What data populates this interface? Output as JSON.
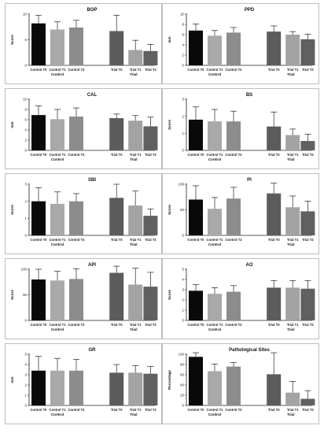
{
  "chart_data": [
    {
      "type": "bar",
      "title": "BOP",
      "ylabel": "Score",
      "ylim": [
        0,
        10
      ],
      "yticks": [
        0,
        5,
        10
      ],
      "categories": [
        "Control T0",
        "Control T1",
        "Control T2",
        "Trial T0",
        "Trial T1",
        "Trial T2"
      ],
      "groups": [
        "Control",
        "Trial"
      ],
      "values": [
        8.2,
        7.0,
        7.4,
        6.7,
        3.0,
        2.8
      ],
      "errors": [
        1.6,
        1.5,
        1.4,
        3.1,
        1.9,
        1.3
      ]
    },
    {
      "type": "bar",
      "title": "PPD",
      "ylabel": "mm",
      "ylim": [
        0,
        10
      ],
      "yticks": [
        0,
        2,
        4,
        6,
        8,
        10
      ],
      "categories": [
        "Control T0",
        "Control T1",
        "Control T2",
        "Trial T0",
        "Trial T1",
        "Trial T2"
      ],
      "groups": [
        "Control",
        "Trial"
      ],
      "values": [
        6.8,
        5.8,
        6.4,
        6.6,
        6.0,
        5.1
      ],
      "errors": [
        1.3,
        1.0,
        1.0,
        1.1,
        0.6,
        1.0
      ]
    },
    {
      "type": "bar",
      "title": "CAL",
      "ylabel": "mm",
      "ylim": [
        0,
        10
      ],
      "yticks": [
        0,
        2,
        4,
        6,
        8,
        10
      ],
      "categories": [
        "Control T0",
        "Control T1",
        "Control T2",
        "Trial T0",
        "Trial T1",
        "Trial T2"
      ],
      "groups": [
        "Control",
        "Trial"
      ],
      "values": [
        6.9,
        6.1,
        6.6,
        6.3,
        5.8,
        4.7
      ],
      "errors": [
        1.8,
        1.9,
        1.7,
        0.8,
        1.0,
        1.8
      ]
    },
    {
      "type": "bar",
      "title": "BS",
      "ylabel": "Score",
      "ylim": [
        0,
        3
      ],
      "yticks": [
        0,
        1,
        2,
        3
      ],
      "categories": [
        "Control T0",
        "Control T1",
        "Control T2",
        "Trial T0",
        "Trial T1",
        "Trial T2"
      ],
      "groups": [
        "Control",
        "Trial"
      ],
      "values": [
        1.8,
        1.7,
        1.7,
        1.4,
        0.9,
        0.55
      ],
      "errors": [
        0.75,
        0.7,
        0.6,
        0.85,
        0.35,
        0.4
      ]
    },
    {
      "type": "bar",
      "title": "SBI",
      "ylabel": "Score",
      "ylim": [
        0,
        3
      ],
      "yticks": [
        0,
        1,
        2,
        3
      ],
      "categories": [
        "Control T0",
        "Control T1",
        "Control T2",
        "Trial T0",
        "Trial T1",
        "Trial T2"
      ],
      "groups": [
        "Control",
        "Trial"
      ],
      "values": [
        2.0,
        1.85,
        2.0,
        2.2,
        1.75,
        1.15
      ],
      "errors": [
        0.8,
        0.7,
        0.45,
        0.8,
        0.85,
        0.4
      ]
    },
    {
      "type": "bar",
      "title": "PI",
      "ylabel": "Score",
      "ylim": [
        0,
        100
      ],
      "yticks": [
        0,
        50,
        100
      ],
      "categories": [
        "Control T0",
        "Control T1",
        "Control T2",
        "Trial T0",
        "Trial T1",
        "Trial T2"
      ],
      "groups": [
        "Control",
        "Trial"
      ],
      "values": [
        70,
        52,
        72,
        82,
        55,
        47
      ],
      "errors": [
        27,
        22,
        22,
        20,
        22,
        20
      ]
    },
    {
      "type": "bar",
      "title": "API",
      "ylabel": "Score",
      "ylim": [
        0,
        100
      ],
      "yticks": [
        0,
        50,
        100
      ],
      "categories": [
        "Control T0",
        "Control T1",
        "Control T2",
        "Trial T0",
        "Trial T1",
        "Trial T2"
      ],
      "groups": [
        "Control",
        "Trial"
      ],
      "values": [
        80,
        78,
        81,
        93,
        70,
        66
      ],
      "errors": [
        20,
        18,
        20,
        13,
        32,
        28
      ]
    },
    {
      "type": "bar",
      "title": "AO",
      "ylabel": "Score",
      "ylim": [
        0,
        5
      ],
      "yticks": [
        0,
        1,
        2,
        3,
        4,
        5
      ],
      "categories": [
        "Control T0",
        "Control T1",
        "Control T2",
        "Trial T0",
        "Trial T1",
        "Trial T2"
      ],
      "groups": [
        "Control",
        "Trial"
      ],
      "values": [
        2.9,
        2.6,
        2.8,
        3.2,
        3.2,
        3.1
      ],
      "errors": [
        0.6,
        0.6,
        0.6,
        0.7,
        0.7,
        0.8
      ]
    },
    {
      "type": "bar",
      "title": "GR",
      "ylabel": "mm",
      "ylim": [
        0,
        5
      ],
      "yticks": [
        0,
        1,
        2,
        3,
        4,
        5
      ],
      "categories": [
        "Control T0",
        "Control T1",
        "Control T2",
        "Trial T0",
        "Trial T1",
        "Trial T2"
      ],
      "groups": [
        "Control",
        "Trial"
      ],
      "values": [
        3.4,
        3.4,
        3.4,
        3.2,
        3.2,
        3.1
      ],
      "errors": [
        1.4,
        1.2,
        1.1,
        0.8,
        0.7,
        0.7
      ]
    },
    {
      "type": "bar",
      "title": "Pathological Sites",
      "ylabel": "Percentage",
      "ylim": [
        0,
        100
      ],
      "yticks": [
        0,
        20,
        40,
        60,
        80,
        100
      ],
      "categories": [
        "Control T0",
        "Control T1",
        "Control T2",
        "Trial T0",
        "Trial T1",
        "Trial T2"
      ],
      "groups": [
        "Control",
        "Trial"
      ],
      "values": [
        95,
        67,
        76,
        61,
        25,
        13
      ],
      "errors": [
        8,
        14,
        8,
        42,
        22,
        16
      ]
    }
  ],
  "colors": {
    "bars": [
      "#0a0a0a",
      "#a9a9a9",
      "#8c8c8c",
      "#5c5c5c",
      "#a3a3a3",
      "#606060"
    ],
    "axis": "#222222",
    "border": "#bdbdbd"
  }
}
